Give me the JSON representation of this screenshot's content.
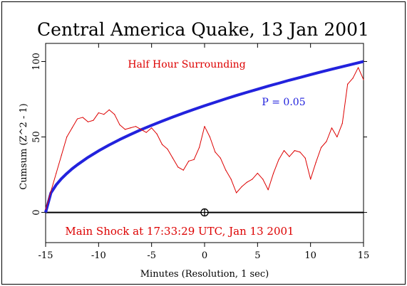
{
  "chart_data": {
    "type": "line",
    "title": "Central America Quake, 13 Jan 2001",
    "xlabel": "Minutes (Resolution, 1 sec)",
    "ylabel": "Cumsum (Z^2 - 1)",
    "xlim": [
      -15,
      15
    ],
    "ylim": [
      -20,
      112
    ],
    "xticks": [
      -15,
      -10,
      -5,
      0,
      5,
      10,
      15
    ],
    "yticks": [
      0,
      50,
      100
    ],
    "grid": false,
    "annotations": {
      "top": "Half Hour Surrounding",
      "bottom": "Main Shock at 17:33:29 UTC, Jan 13 2001",
      "curve_label": "P = 0.05"
    },
    "series": [
      {
        "name": "Half Hour Surrounding",
        "color": "#dd0000",
        "x": [
          -15,
          -14.5,
          -14,
          -13.5,
          -13,
          -12.5,
          -12,
          -11.5,
          -11,
          -10.5,
          -10,
          -9.5,
          -9,
          -8.5,
          -8,
          -7.5,
          -7,
          -6.5,
          -6,
          -5.5,
          -5,
          -4.5,
          -4,
          -3.5,
          -3,
          -2.5,
          -2,
          -1.5,
          -1,
          -0.5,
          0,
          0.5,
          1,
          1.5,
          2,
          2.5,
          3,
          3.5,
          4,
          4.5,
          5,
          5.5,
          6,
          6.5,
          7,
          7.5,
          8,
          8.5,
          9,
          9.5,
          10,
          10.5,
          11,
          11.5,
          12,
          12.5,
          13,
          13.5,
          14,
          14.5,
          15
        ],
        "y": [
          2,
          14,
          26,
          38,
          50,
          56,
          62,
          63,
          60,
          61,
          66,
          65,
          68,
          65,
          58,
          55,
          56,
          57,
          55,
          53,
          56,
          52,
          45,
          42,
          36,
          30,
          28,
          34,
          35,
          43,
          57,
          50,
          40,
          36,
          28,
          22,
          13,
          17,
          20,
          22,
          26,
          22,
          15,
          26,
          35,
          41,
          37,
          41,
          40,
          36,
          22,
          33,
          43,
          47,
          56,
          50,
          59,
          85,
          89,
          96,
          88
        ]
      },
      {
        "name": "P = 0.05",
        "color": "#2222dd",
        "x": [
          -15,
          -14.5,
          -14,
          -13.5,
          -13,
          -12.5,
          -12,
          -11,
          -10,
          -9,
          -8,
          -7,
          -6,
          -5,
          -4,
          -3,
          -2,
          -1,
          0,
          1,
          2,
          3,
          4,
          5,
          6,
          7,
          8,
          9,
          10,
          11,
          12,
          13,
          14,
          15
        ],
        "y": [
          0,
          12.9,
          18.3,
          22.4,
          25.8,
          28.9,
          31.6,
          36.5,
          40.8,
          44.7,
          48.3,
          51.6,
          54.8,
          57.7,
          60.5,
          63.2,
          65.8,
          68.3,
          70.7,
          73,
          75.3,
          77.5,
          79.6,
          81.6,
          83.7,
          85.6,
          87.6,
          89.4,
          91.3,
          93.1,
          94.9,
          96.6,
          98.3,
          100
        ]
      }
    ],
    "reference_line": {
      "y": 0,
      "color": "#000000"
    },
    "marker": {
      "x": 0,
      "y": 0,
      "shape": "circle-cross"
    }
  }
}
